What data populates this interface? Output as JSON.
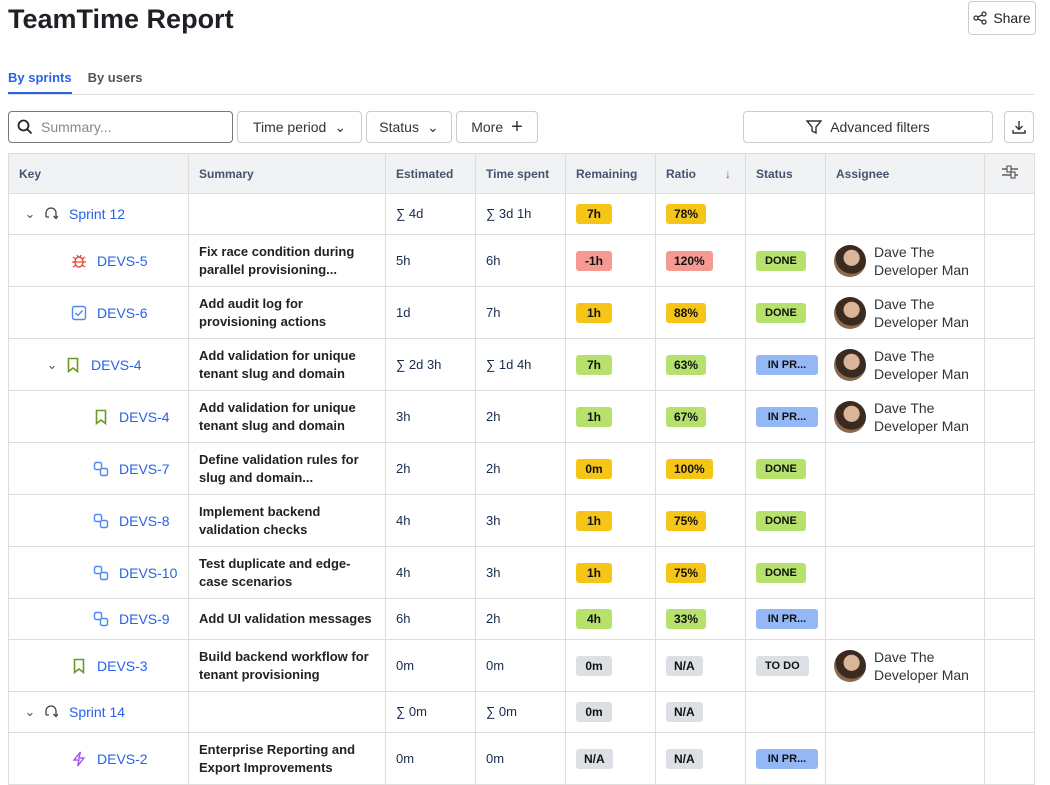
{
  "header": {
    "title": "TeamTime Report",
    "share_label": "Share"
  },
  "tabs": [
    {
      "label": "By sprints",
      "active": true
    },
    {
      "label": "By users",
      "active": false
    }
  ],
  "toolbar": {
    "search_placeholder": "Summary...",
    "time_period": "Time period",
    "status": "Status",
    "more": "More",
    "advanced_filters": "Advanced filters"
  },
  "colors": {
    "yellow": "#f5c518",
    "red": "#f49a92",
    "green": "#b6e16c",
    "gray": "#dcdfe4",
    "blue": "#94b8f6",
    "link": "#2563eb"
  },
  "columns": [
    "Key",
    "Summary",
    "Estimated",
    "Time spent",
    "Remaining",
    "Ratio",
    "Status",
    "Assignee"
  ],
  "rows": [
    {
      "level": 0,
      "expand": true,
      "icon": "sprint-icon",
      "key": "Sprint 12",
      "summary": "",
      "est": "∑ 4d",
      "spent": "∑ 3d 1h",
      "rem": "7h",
      "remc": "yellow",
      "ratio": "78%",
      "ratioc": "yellow",
      "status": "",
      "statusc": "",
      "assignee": ""
    },
    {
      "level": 1,
      "icon": "bug-icon",
      "key": "DEVS-5",
      "summary": "Fix race condition during parallel provisioning...",
      "est": "5h",
      "spent": "6h",
      "rem": "-1h",
      "remc": "red",
      "ratio": "120%",
      "ratioc": "red",
      "status": "DONE",
      "statusc": "green",
      "assignee": "Dave The Developer Man"
    },
    {
      "level": 1,
      "icon": "task-icon",
      "key": "DEVS-6",
      "summary": "Add audit log for provisioning actions",
      "est": "1d",
      "spent": "7h",
      "rem": "1h",
      "remc": "yellow",
      "ratio": "88%",
      "ratioc": "yellow",
      "status": "DONE",
      "statusc": "green",
      "assignee": "Dave The Developer Man"
    },
    {
      "level": 1,
      "expand": true,
      "icon": "story-icon",
      "key": "DEVS-4",
      "summary": "Add validation for unique tenant slug and domain",
      "est": "∑ 2d 3h",
      "spent": "∑ 1d 4h",
      "rem": "7h",
      "remc": "green",
      "ratio": "63%",
      "ratioc": "green",
      "status": "IN PR...",
      "statusc": "blue",
      "assignee": "Dave The Developer Man"
    },
    {
      "level": 2,
      "icon": "story-icon",
      "key": "DEVS-4",
      "summary": "Add validation for unique tenant slug and domain",
      "est": "3h",
      "spent": "2h",
      "rem": "1h",
      "remc": "green",
      "ratio": "67%",
      "ratioc": "green",
      "status": "IN PR...",
      "statusc": "blue",
      "assignee": "Dave The Developer Man"
    },
    {
      "level": 2,
      "icon": "subtask-icon",
      "key": "DEVS-7",
      "summary": "Define validation rules for slug and domain...",
      "est": "2h",
      "spent": "2h",
      "rem": "0m",
      "remc": "yellow",
      "ratio": "100%",
      "ratioc": "yellow",
      "status": "DONE",
      "statusc": "green",
      "assignee": ""
    },
    {
      "level": 2,
      "icon": "subtask-icon",
      "key": "DEVS-8",
      "summary": "Implement backend validation checks",
      "est": "4h",
      "spent": "3h",
      "rem": "1h",
      "remc": "yellow",
      "ratio": "75%",
      "ratioc": "yellow",
      "status": "DONE",
      "statusc": "green",
      "assignee": ""
    },
    {
      "level": 2,
      "icon": "subtask-icon",
      "key": "DEVS-10",
      "summary": "Test duplicate and edge-case scenarios",
      "est": "4h",
      "spent": "3h",
      "rem": "1h",
      "remc": "yellow",
      "ratio": "75%",
      "ratioc": "yellow",
      "status": "DONE",
      "statusc": "green",
      "assignee": ""
    },
    {
      "level": 2,
      "icon": "subtask-icon",
      "key": "DEVS-9",
      "summary": "Add UI validation messages",
      "est": "6h",
      "spent": "2h",
      "rem": "4h",
      "remc": "green",
      "ratio": "33%",
      "ratioc": "green",
      "status": "IN PR...",
      "statusc": "blue",
      "assignee": ""
    },
    {
      "level": 1,
      "icon": "story-icon",
      "key": "DEVS-3",
      "summary": "Build backend workflow for tenant provisioning",
      "est": "0m",
      "spent": "0m",
      "rem": "0m",
      "remc": "gray",
      "ratio": "N/A",
      "ratioc": "gray",
      "status": "TO DO",
      "statusc": "gray",
      "assignee": "Dave The Developer Man"
    },
    {
      "level": 0,
      "expand": true,
      "icon": "sprint-icon",
      "key": "Sprint 14",
      "summary": "",
      "est": "∑ 0m",
      "spent": "∑ 0m",
      "rem": "0m",
      "remc": "gray",
      "ratio": "N/A",
      "ratioc": "gray",
      "status": "",
      "statusc": "",
      "assignee": ""
    },
    {
      "level": 1,
      "icon": "epic-icon",
      "key": "DEVS-2",
      "summary": "Enterprise Reporting and Export Improvements",
      "est": "0m",
      "spent": "0m",
      "rem": "N/A",
      "remc": "gray",
      "ratio": "N/A",
      "ratioc": "gray",
      "status": "IN PR...",
      "statusc": "blue",
      "assignee": ""
    }
  ]
}
